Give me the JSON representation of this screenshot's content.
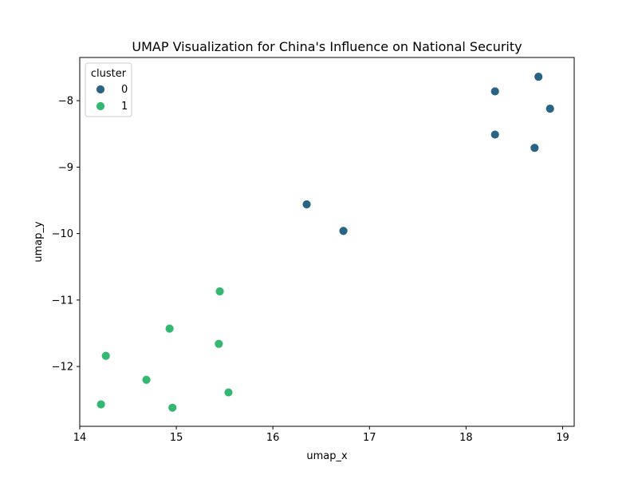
{
  "chart_data": {
    "type": "scatter",
    "title": "UMAP Visualization for China's Influence on National Security",
    "xlabel": "umap_x",
    "ylabel": "umap_y",
    "xlim": [
      14.0,
      19.12
    ],
    "ylim": [
      -12.9,
      -7.35
    ],
    "x_ticks": [
      14,
      15,
      16,
      17,
      18,
      19
    ],
    "y_ticks": [
      -8,
      -9,
      -10,
      -11,
      -12
    ],
    "y_tick_labels": [
      "−8",
      "−9",
      "−10",
      "−11",
      "−12"
    ],
    "grid": false,
    "legend": {
      "title": "cluster",
      "placement": "top-left"
    },
    "series": [
      {
        "name": "0",
        "color": "#2a6485",
        "points": [
          {
            "x": 18.75,
            "y": -7.64
          },
          {
            "x": 18.3,
            "y": -7.86
          },
          {
            "x": 18.87,
            "y": -8.12
          },
          {
            "x": 18.3,
            "y": -8.51
          },
          {
            "x": 18.71,
            "y": -8.71
          },
          {
            "x": 16.35,
            "y": -9.56
          },
          {
            "x": 16.73,
            "y": -9.96
          }
        ]
      },
      {
        "name": "1",
        "color": "#34b871",
        "points": [
          {
            "x": 15.45,
            "y": -10.87
          },
          {
            "x": 14.93,
            "y": -11.43
          },
          {
            "x": 15.44,
            "y": -11.66
          },
          {
            "x": 14.27,
            "y": -11.84
          },
          {
            "x": 14.69,
            "y": -12.2
          },
          {
            "x": 15.54,
            "y": -12.39
          },
          {
            "x": 14.22,
            "y": -12.57
          },
          {
            "x": 14.96,
            "y": -12.62
          }
        ]
      }
    ]
  }
}
